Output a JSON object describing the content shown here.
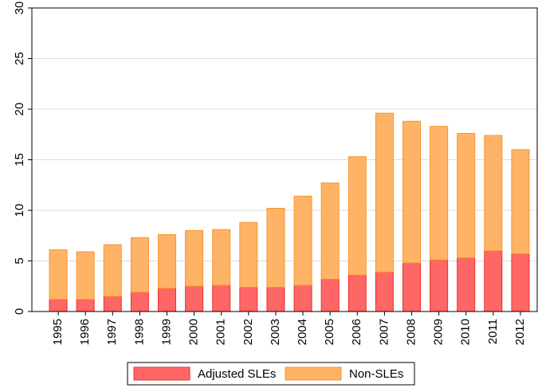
{
  "chart_data": {
    "type": "stacked-bar",
    "categories": [
      "1995",
      "1996",
      "1997",
      "1998",
      "1999",
      "2000",
      "2001",
      "2002",
      "2003",
      "2004",
      "2005",
      "2006",
      "2007",
      "2008",
      "2009",
      "2010",
      "2011",
      "2012"
    ],
    "series": [
      {
        "name": "Adjusted SLEs",
        "color": "#ff6666",
        "values": [
          1.2,
          1.2,
          1.5,
          1.9,
          2.3,
          2.5,
          2.6,
          2.4,
          2.4,
          2.6,
          3.2,
          3.6,
          3.9,
          4.8,
          5.1,
          5.3,
          6.0,
          5.7
        ]
      },
      {
        "name": "Non-SLEs",
        "color": "#ffb366",
        "values": [
          4.9,
          4.7,
          5.1,
          5.4,
          5.3,
          5.5,
          5.5,
          6.4,
          7.8,
          8.8,
          9.5,
          11.7,
          15.7,
          14.0,
          13.2,
          12.3,
          11.4,
          10.3
        ]
      }
    ],
    "ylim": [
      0,
      30
    ],
    "yticks": [
      0,
      5,
      10,
      15,
      20,
      25,
      30
    ],
    "grid": true,
    "legend": "bottom"
  }
}
